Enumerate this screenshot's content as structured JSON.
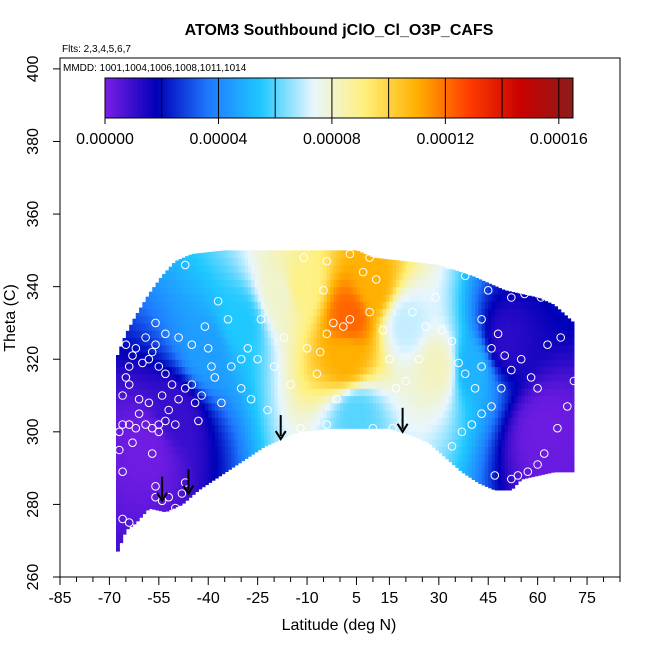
{
  "chart_data": {
    "type": "heatmap",
    "title": "ATOM3 Southbound jClO_Cl_O3P_CAFS",
    "flights_note": "Flts: 2,3,4,5,6,7",
    "dates_note": "MMDD: 1001,1004,1006,1008,1011,1014",
    "xlabel": "Latitude (deg N)",
    "ylabel": "Theta (C)",
    "xlim": [
      -85,
      85
    ],
    "ylim": [
      260,
      403
    ],
    "x_ticks": [
      -85,
      -70,
      -55,
      -40,
      -25,
      -10,
      5,
      15,
      30,
      45,
      60,
      75
    ],
    "x_tick_labels": [
      "-85",
      "-70",
      "-55",
      "-40",
      "-25",
      "-10",
      "5",
      "15",
      "30",
      "45",
      "60",
      "75"
    ],
    "x_minor_step": 5,
    "y_ticks": [
      260,
      280,
      300,
      320,
      340,
      360,
      380,
      400
    ],
    "y_tick_labels": [
      "260",
      "280",
      "300",
      "320",
      "340",
      "360",
      "380",
      "400"
    ],
    "colorbar": {
      "range": [
        0,
        0.000165
      ],
      "tick_values": [
        0,
        4e-05,
        8e-05,
        0.00012,
        0.00016
      ],
      "tick_labels": [
        "0.00000",
        "0.00004",
        "0.00008",
        "0.00012",
        "0.00016"
      ],
      "line_values": [
        2e-05,
        4e-05,
        6e-05,
        8e-05,
        0.0001,
        0.00012,
        0.00014,
        0.00016
      ],
      "colors": [
        "#7a1fe6",
        "#0000b8",
        "#1f7aff",
        "#1fc8ff",
        "#e8f6ff",
        "#fff07a",
        "#ffb000",
        "#ff3c00",
        "#c80000",
        "#8c1c1c"
      ]
    },
    "lower_boundary": [
      [
        -68,
        266
      ],
      [
        -65,
        273
      ],
      [
        -62,
        275
      ],
      [
        -58,
        279
      ],
      [
        -53,
        278
      ],
      [
        -48,
        280
      ],
      [
        -43,
        284
      ],
      [
        -38,
        287
      ],
      [
        -33,
        290
      ],
      [
        -28,
        293
      ],
      [
        -23,
        296
      ],
      [
        -18,
        298
      ],
      [
        -13,
        300
      ],
      [
        -3,
        301
      ],
      [
        7,
        301
      ],
      [
        15,
        301
      ],
      [
        22,
        299
      ],
      [
        27,
        297
      ],
      [
        32,
        293
      ],
      [
        37,
        289
      ],
      [
        42,
        286
      ],
      [
        47,
        284
      ],
      [
        52,
        284
      ],
      [
        55,
        287
      ],
      [
        60,
        288
      ],
      [
        65,
        289
      ],
      [
        71,
        289
      ]
    ],
    "upper_boundary": [
      [
        -68,
        320
      ],
      [
        -65,
        327
      ],
      [
        -62,
        332
      ],
      [
        -58,
        338
      ],
      [
        -54,
        343
      ],
      [
        -50,
        347
      ],
      [
        -45,
        349
      ],
      [
        -35,
        350
      ],
      [
        5,
        350
      ],
      [
        10,
        348
      ],
      [
        20,
        347
      ],
      [
        30,
        346
      ],
      [
        40,
        343
      ],
      [
        45,
        341
      ],
      [
        50,
        339
      ],
      [
        55,
        338
      ],
      [
        60,
        337
      ],
      [
        65,
        335
      ],
      [
        71,
        330
      ]
    ],
    "field_peaks": [
      {
        "lat": -58,
        "theta": 296,
        "value": 1.5e-06
      },
      {
        "lat": -50,
        "theta": 305,
        "value": 1e-05
      },
      {
        "lat": -40,
        "theta": 322,
        "value": 4.5e-05
      },
      {
        "lat": -30,
        "theta": 330,
        "value": 5.5e-05
      },
      {
        "lat": -18,
        "theta": 338,
        "value": 8e-05
      },
      {
        "lat": -12,
        "theta": 340,
        "value": 9e-05
      },
      {
        "lat": 3,
        "theta": 332,
        "value": 0.000122
      },
      {
        "lat": 2,
        "theta": 320,
        "value": 0.00011
      },
      {
        "lat": 10,
        "theta": 340,
        "value": 0.00011
      },
      {
        "lat": 5,
        "theta": 305,
        "value": 6e-05
      },
      {
        "lat": 20,
        "theta": 330,
        "value": 7e-05
      },
      {
        "lat": 30,
        "theta": 318,
        "value": 8.2e-05
      },
      {
        "lat": 40,
        "theta": 318,
        "value": 5e-05
      },
      {
        "lat": 50,
        "theta": 325,
        "value": 1.2e-05
      },
      {
        "lat": 62,
        "theta": 300,
        "value": 2e-06
      }
    ],
    "arrows": [
      [
        -54,
        281
      ],
      [
        -46,
        283
      ],
      [
        -18,
        298
      ],
      [
        19,
        300
      ]
    ],
    "observation_points": [
      [
        -66,
        276
      ],
      [
        -64,
        275
      ],
      [
        -66,
        289
      ],
      [
        -67,
        295
      ],
      [
        -67,
        300
      ],
      [
        -66,
        302
      ],
      [
        -64,
        302
      ],
      [
        -63,
        297
      ],
      [
        -62,
        301
      ],
      [
        -61,
        305
      ],
      [
        -59,
        302
      ],
      [
        -57,
        301
      ],
      [
        -55,
        302
      ],
      [
        -53,
        303
      ],
      [
        -55,
        300
      ],
      [
        -57,
        294
      ],
      [
        -56,
        285
      ],
      [
        -56,
        282
      ],
      [
        -54,
        281
      ],
      [
        -52,
        282
      ],
      [
        -50,
        279
      ],
      [
        -48,
        283
      ],
      [
        -47,
        286
      ],
      [
        -66,
        310
      ],
      [
        -65,
        315
      ],
      [
        -64,
        318
      ],
      [
        -63,
        321
      ],
      [
        -60,
        319
      ],
      [
        -58,
        320
      ],
      [
        -57,
        322
      ],
      [
        -56,
        324
      ],
      [
        -55,
        318
      ],
      [
        -53,
        316
      ],
      [
        -51,
        313
      ],
      [
        -49,
        309
      ],
      [
        -47,
        312
      ],
      [
        -45,
        313
      ],
      [
        -44,
        308
      ],
      [
        -42,
        310
      ],
      [
        -50,
        302
      ],
      [
        -52,
        306
      ],
      [
        -54,
        310
      ],
      [
        -58,
        308
      ],
      [
        -61,
        309
      ],
      [
        -64,
        313
      ],
      [
        -65,
        324
      ],
      [
        -62,
        323
      ],
      [
        -59,
        326
      ],
      [
        -56,
        330
      ],
      [
        -53,
        327
      ],
      [
        -49,
        326
      ],
      [
        -45,
        324
      ],
      [
        -40,
        323
      ],
      [
        -38,
        315
      ],
      [
        -36,
        308
      ],
      [
        -33,
        318
      ],
      [
        -30,
        320
      ],
      [
        -28,
        323
      ],
      [
        -25,
        320
      ],
      [
        -24,
        331
      ],
      [
        -34,
        331
      ],
      [
        -47,
        346
      ],
      [
        -17,
        326
      ],
      [
        -10,
        323
      ],
      [
        -6,
        322
      ],
      [
        -4,
        327
      ],
      [
        -2,
        330
      ],
      [
        1,
        329
      ],
      [
        3,
        331
      ],
      [
        -5,
        339
      ],
      [
        -11,
        348
      ],
      [
        -4,
        347
      ],
      [
        3,
        349
      ],
      [
        9,
        348
      ],
      [
        11,
        342
      ],
      [
        9,
        333
      ],
      [
        13,
        328
      ],
      [
        15,
        320
      ],
      [
        17,
        312
      ],
      [
        19,
        303
      ],
      [
        16,
        301
      ],
      [
        10,
        301
      ],
      [
        -4,
        302
      ],
      [
        -12,
        301
      ],
      [
        26,
        329
      ],
      [
        29,
        337
      ],
      [
        31,
        328
      ],
      [
        34,
        325
      ],
      [
        36,
        319
      ],
      [
        38,
        316
      ],
      [
        41,
        312
      ],
      [
        43,
        318
      ],
      [
        46,
        323
      ],
      [
        48,
        327
      ],
      [
        50,
        321
      ],
      [
        52,
        317
      ],
      [
        49,
        312
      ],
      [
        46,
        307
      ],
      [
        43,
        305
      ],
      [
        40,
        302
      ],
      [
        37,
        300
      ],
      [
        34,
        296
      ],
      [
        31,
        291
      ],
      [
        47,
        288
      ],
      [
        52,
        287
      ],
      [
        54,
        288
      ],
      [
        57,
        289
      ],
      [
        60,
        291
      ],
      [
        62,
        294
      ],
      [
        66,
        301
      ],
      [
        69,
        307
      ],
      [
        71,
        314
      ],
      [
        70,
        333
      ],
      [
        66,
        338
      ],
      [
        61,
        337
      ],
      [
        56,
        338
      ],
      [
        52,
        337
      ],
      [
        45,
        339
      ],
      [
        38,
        343
      ],
      [
        27,
        348
      ],
      [
        33,
        346
      ],
      [
        24,
        320
      ],
      [
        20,
        314
      ],
      [
        22,
        333
      ],
      [
        43,
        331
      ],
      [
        55,
        320
      ],
      [
        58,
        315
      ],
      [
        60,
        312
      ],
      [
        63,
        324
      ],
      [
        67,
        326
      ],
      [
        7,
        344
      ],
      [
        -1,
        309
      ],
      [
        -7,
        316
      ],
      [
        -15,
        313
      ],
      [
        -20,
        318
      ],
      [
        -27,
        309
      ],
      [
        -22,
        306
      ],
      [
        -30,
        312
      ],
      [
        -39,
        318
      ],
      [
        -41,
        329
      ],
      [
        -37,
        336
      ],
      [
        -43,
        303
      ]
    ]
  }
}
